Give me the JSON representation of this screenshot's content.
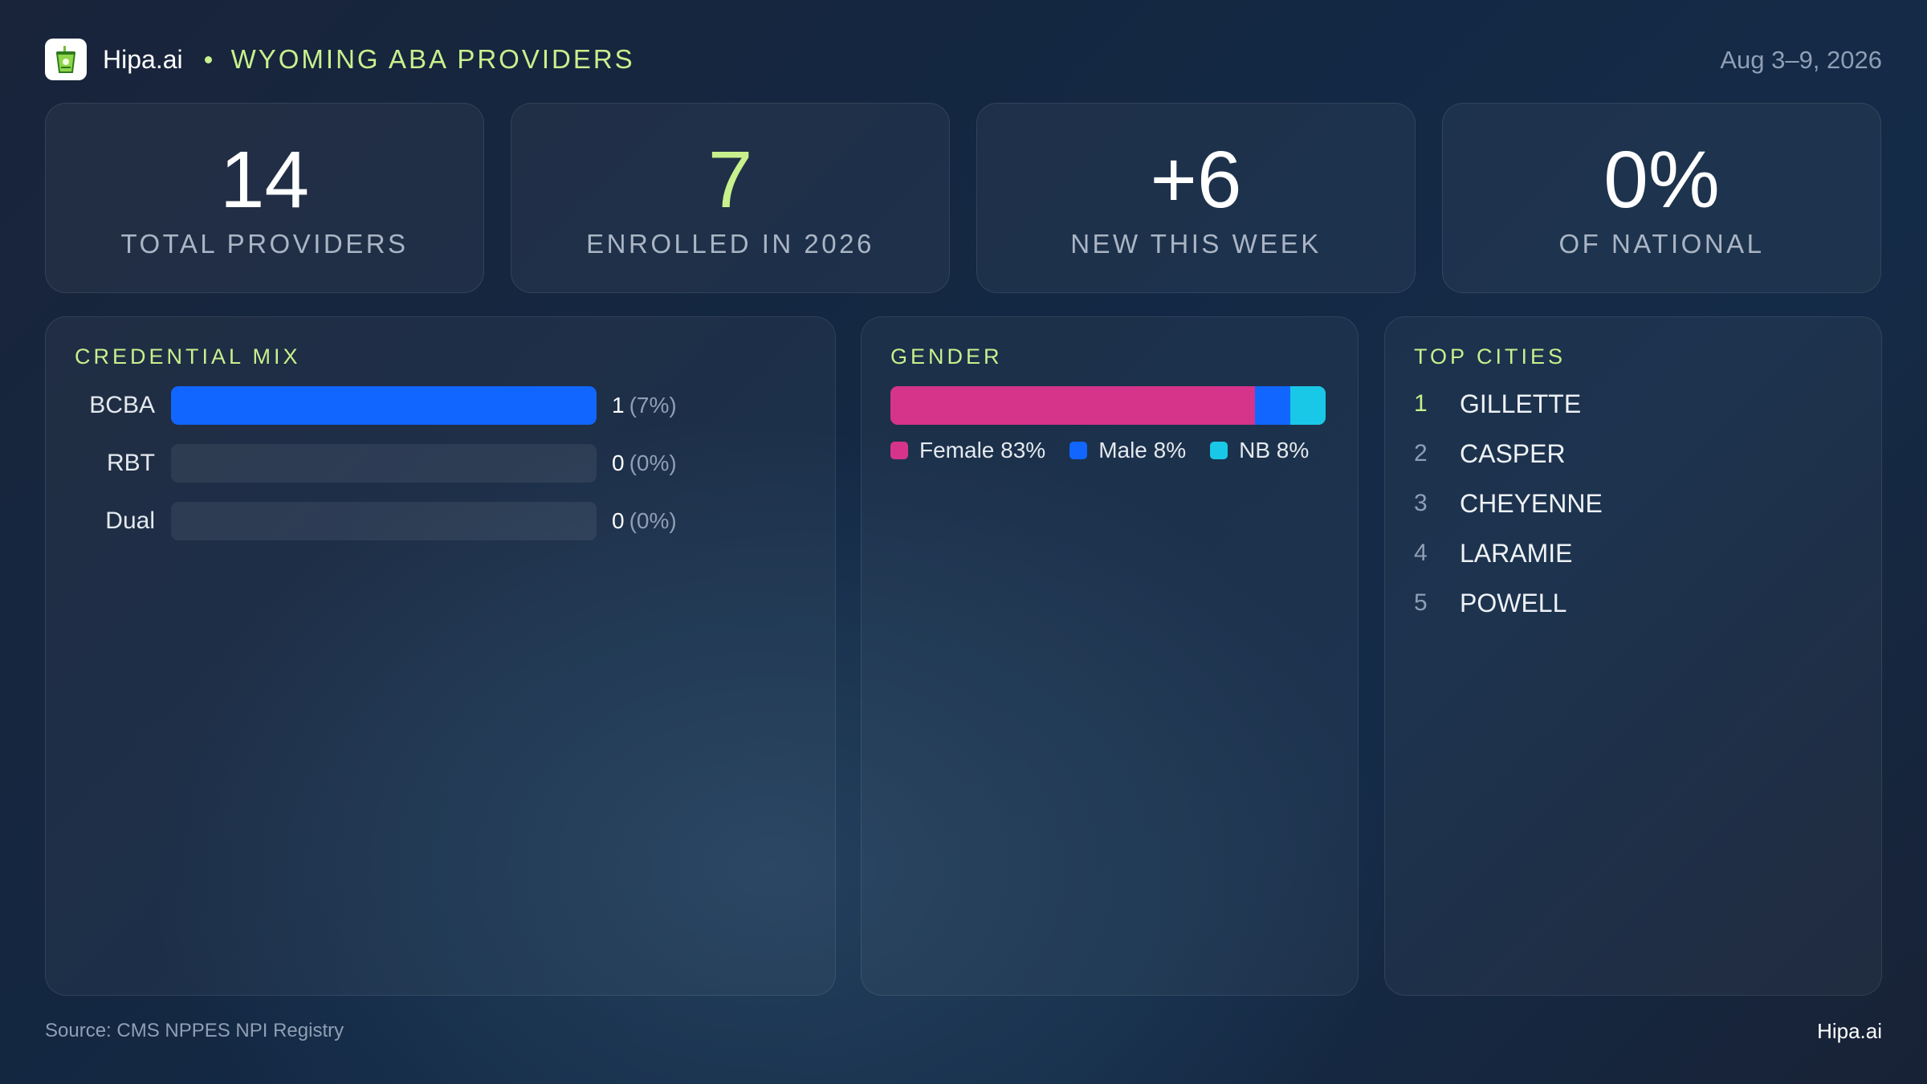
{
  "header": {
    "brand": "Hipa.ai",
    "title": "WYOMING ABA PROVIDERS",
    "date_range": "Aug 3–9, 2026"
  },
  "kpis": [
    {
      "value": "14",
      "label": "TOTAL PROVIDERS",
      "accent": false
    },
    {
      "value": "7",
      "label": "ENROLLED IN 2026",
      "accent": true
    },
    {
      "value": "+6",
      "label": "NEW THIS WEEK",
      "accent": false
    },
    {
      "value": "0%",
      "label": "OF NATIONAL",
      "accent": false
    }
  ],
  "credential_mix": {
    "title": "CREDENTIAL MIX",
    "rows": [
      {
        "label": "BCBA",
        "count": "1",
        "pct": "(7%)"
      },
      {
        "label": "RBT",
        "count": "0",
        "pct": "(0%)"
      },
      {
        "label": "Dual",
        "count": "0",
        "pct": "(0%)"
      }
    ]
  },
  "gender": {
    "title": "GENDER",
    "segments": [
      {
        "label": "Female 83%",
        "color": "#d6348a"
      },
      {
        "label": "Male 8%",
        "color": "#1166ff"
      },
      {
        "label": "NB 8%",
        "color": "#19c8e6"
      }
    ]
  },
  "top_cities": {
    "title": "TOP CITIES",
    "items": [
      {
        "rank": "1",
        "name": "GILLETTE"
      },
      {
        "rank": "2",
        "name": "CASPER"
      },
      {
        "rank": "3",
        "name": "CHEYENNE"
      },
      {
        "rank": "4",
        "name": "LARAMIE"
      },
      {
        "rank": "5",
        "name": "POWELL"
      }
    ]
  },
  "footer": {
    "source": "Source: CMS NPPES NPI Registry",
    "brand": "Hipa.ai"
  },
  "chart_data": [
    {
      "type": "bar",
      "title": "CREDENTIAL MIX",
      "categories": [
        "BCBA",
        "RBT",
        "Dual"
      ],
      "values": [
        1,
        0,
        0
      ],
      "percent": [
        7,
        0,
        0
      ]
    },
    {
      "type": "bar",
      "title": "GENDER",
      "categories": [
        "Female",
        "Male",
        "NB"
      ],
      "values": [
        83,
        8,
        8
      ]
    }
  ],
  "colors": {
    "accent_green": "#c8f08d",
    "bar_blue": "#1166ff",
    "female": "#d6348a",
    "male": "#1166ff",
    "nb": "#19c8e6"
  }
}
